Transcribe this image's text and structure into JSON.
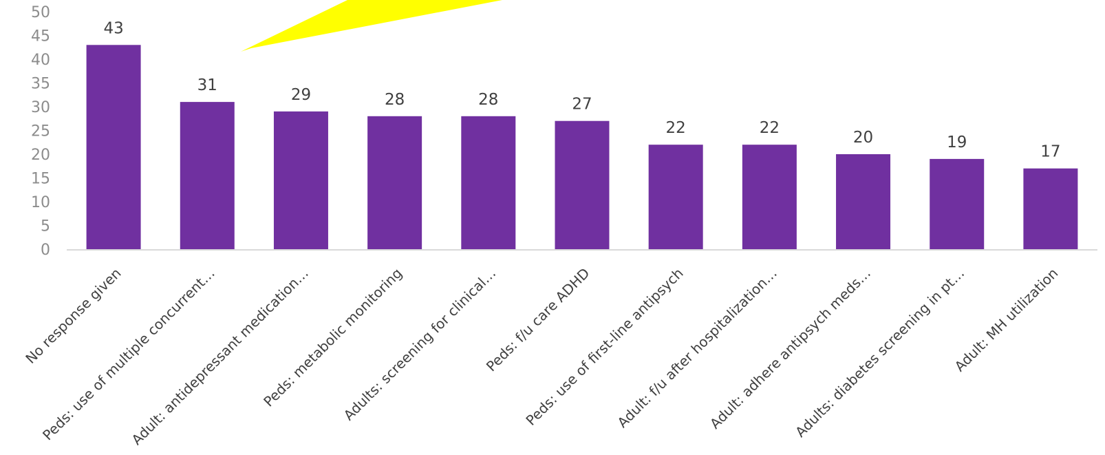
{
  "chart_data": {
    "type": "bar",
    "title": "",
    "xlabel": "",
    "ylabel": "",
    "ylim": [
      0,
      50
    ],
    "yticks": [
      0,
      5,
      10,
      15,
      20,
      25,
      30,
      35,
      40,
      45,
      50
    ],
    "grid": false,
    "legend": "none",
    "bar_color": "#7030a0",
    "annotation_color": "#ffff00",
    "categories": [
      "No response given",
      "Peds: use of multiple concurrent…",
      "Adult: antidepressant medication…",
      "Peds: metabolic monitoring",
      "Adults: screening for clinical…",
      "Peds: f/u care ADHD",
      "Peds: use of first-line antipsych",
      "Adult: f/u after hospitalization…",
      "Adult: adhere antipsych meds…",
      "Adults: diabetes screening in pt…",
      "Adult: MH utilization"
    ],
    "values": [
      43,
      31,
      29,
      28,
      28,
      27,
      22,
      22,
      20,
      19,
      17
    ]
  }
}
